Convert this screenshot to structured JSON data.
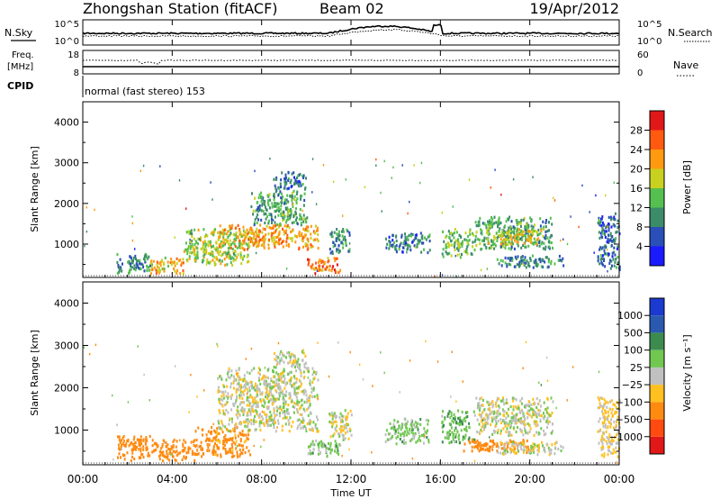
{
  "header": {
    "station": "Zhongshan Station (fitACF)",
    "beam": "Beam 02",
    "date": "19/Apr/2012"
  },
  "top_panels": {
    "nsky": {
      "label": "N.Sky",
      "tick_high": "10^5",
      "tick_low": "10^0"
    },
    "nsearch": {
      "label": "N.Search",
      "tick_high": "10^5",
      "tick_low": "10^0"
    },
    "freq": {
      "label_line1": "Freq.",
      "label_line2": "[MHz]",
      "tick_high": "18",
      "tick_low": "8"
    },
    "nave": {
      "label": "Nave",
      "tick_high": "60",
      "tick_low": "0"
    },
    "cpid": {
      "label": "CPID",
      "mode_text": "normal (fast stereo) 153"
    }
  },
  "x_axis": {
    "label": "Time UT",
    "ticks": [
      "00:00",
      "04:00",
      "08:00",
      "12:00",
      "16:00",
      "20:00",
      "00:00"
    ]
  },
  "power_colorbar": {
    "label": "Power [dB]",
    "ticks": [
      "4",
      "8",
      "12",
      "16",
      "20",
      "24",
      "28"
    ],
    "colors": [
      "#1a1aff",
      "#2a4fb8",
      "#3c8c6a",
      "#55c050",
      "#c8d020",
      "#ff9a10",
      "#ff5a10",
      "#e01818"
    ]
  },
  "velocity_colorbar": {
    "label": "Velocity [m s⁻¹]",
    "ticks": [
      "1000",
      "500",
      "100",
      "25",
      "−25",
      "−100",
      "−500",
      "−1000"
    ],
    "colors": [
      "#1a3ad0",
      "#2a5ab0",
      "#3c8c50",
      "#70c850",
      "#c0c0c0",
      "#ffc020",
      "#ff8a10",
      "#ff4a10",
      "#e01818"
    ]
  },
  "chart_data": [
    {
      "type": "heatmap",
      "name": "power",
      "ylabel": "Slant Range [km]",
      "xlabel": "",
      "ylim": [
        180,
        4500
      ],
      "xlim_hours": [
        0,
        24
      ],
      "yticks": [
        1000,
        2000,
        3000,
        4000
      ],
      "regions": [
        {
          "t": [
            1.5,
            3.0
          ],
          "r": [
            300,
            800
          ],
          "v": 10
        },
        {
          "t": [
            3.0,
            4.5
          ],
          "r": [
            300,
            700
          ],
          "v": 20
        },
        {
          "t": [
            4.5,
            7.5
          ],
          "r": [
            500,
            1400
          ],
          "v": 16
        },
        {
          "t": [
            6.0,
            10.5
          ],
          "r": [
            900,
            1500
          ],
          "v": 22
        },
        {
          "t": [
            7.5,
            10.0
          ],
          "r": [
            1500,
            2300
          ],
          "v": 12
        },
        {
          "t": [
            8.5,
            10.0
          ],
          "r": [
            2300,
            2800
          ],
          "v": 8
        },
        {
          "t": [
            10.0,
            11.5
          ],
          "r": [
            300,
            700
          ],
          "v": 24
        },
        {
          "t": [
            11.0,
            12.0
          ],
          "r": [
            800,
            1400
          ],
          "v": 10
        },
        {
          "t": [
            13.5,
            15.5
          ],
          "r": [
            800,
            1300
          ],
          "v": 8
        },
        {
          "t": [
            16.0,
            17.5
          ],
          "r": [
            700,
            1400
          ],
          "v": 14
        },
        {
          "t": [
            17.5,
            21.0
          ],
          "r": [
            900,
            1700
          ],
          "v": 12
        },
        {
          "t": [
            18.0,
            20.5
          ],
          "r": [
            1000,
            1400
          ],
          "v": 18
        },
        {
          "t": [
            18.5,
            21.5
          ],
          "r": [
            450,
            750
          ],
          "v": 10
        },
        {
          "t": [
            23.0,
            24.0
          ],
          "r": [
            400,
            1800
          ],
          "v": 8
        }
      ]
    },
    {
      "type": "heatmap",
      "name": "velocity",
      "ylabel": "Slant Range [km]",
      "xlabel": "Time UT",
      "ylim": [
        180,
        4500
      ],
      "xlim_hours": [
        0,
        24
      ],
      "yticks": [
        1000,
        2000,
        3000,
        4000
      ],
      "regions": [
        {
          "t": [
            1.5,
            3.0
          ],
          "r": [
            300,
            900
          ],
          "v": -200
        },
        {
          "t": [
            3.0,
            5.0
          ],
          "r": [
            300,
            800
          ],
          "v": -400
        },
        {
          "t": [
            5.0,
            7.5
          ],
          "r": [
            400,
            1100
          ],
          "v": -150
        },
        {
          "t": [
            6.0,
            10.5
          ],
          "r": [
            1000,
            2500
          ],
          "v": 0
        },
        {
          "t": [
            8.5,
            10.0
          ],
          "r": [
            2500,
            2900
          ],
          "v": 0
        },
        {
          "t": [
            10.0,
            11.5
          ],
          "r": [
            400,
            800
          ],
          "v": 60
        },
        {
          "t": [
            11.0,
            12.0
          ],
          "r": [
            800,
            1500
          ],
          "v": 0
        },
        {
          "t": [
            13.5,
            15.5
          ],
          "r": [
            700,
            1300
          ],
          "v": 50
        },
        {
          "t": [
            16.0,
            17.5
          ],
          "r": [
            700,
            1500
          ],
          "v": 80
        },
        {
          "t": [
            17.5,
            21.0
          ],
          "r": [
            900,
            1800
          ],
          "v": 0
        },
        {
          "t": [
            17.0,
            20.0
          ],
          "r": [
            500,
            800
          ],
          "v": -200
        },
        {
          "t": [
            18.5,
            21.5
          ],
          "r": [
            450,
            750
          ],
          "v": 0
        },
        {
          "t": [
            23.0,
            24.0
          ],
          "r": [
            400,
            1800
          ],
          "v": -40
        }
      ]
    }
  ]
}
